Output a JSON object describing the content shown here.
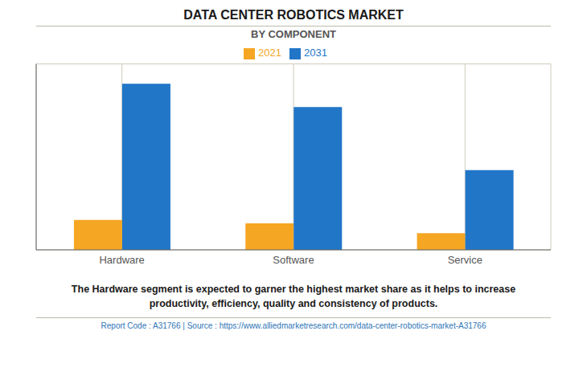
{
  "chart_data": {
    "type": "bar",
    "title": "DATA CENTER ROBOTICS MARKET",
    "subtitle": "BY COMPONENT",
    "categories": [
      "Hardware",
      "Software",
      "Service"
    ],
    "series": [
      {
        "name": "2021",
        "color": "#F5A623",
        "values": [
          0.18,
          0.16,
          0.1
        ]
      },
      {
        "name": "2031",
        "color": "#2176C8",
        "values": [
          1.0,
          0.86,
          0.48
        ]
      }
    ],
    "ylim": [
      0,
      1.12
    ],
    "yticks": [
      0,
      0.2,
      0.4,
      0.6,
      0.8,
      1.0
    ],
    "grid": true,
    "legend": "top",
    "tick_labels": "x",
    "annotations": [
      "The Hardware segment is expected to garner the highest market share as it helps to increase",
      "productivity, efficiency, quality and consistency of products.",
      "Report Code : A31766  |  Source : https://www.alliedmarketresearch.com/data-center-robotics-market-A31766"
    ]
  }
}
